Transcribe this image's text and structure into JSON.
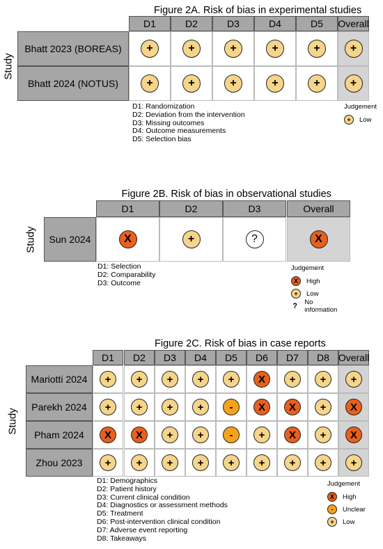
{
  "panels": [
    {
      "id": "2a",
      "title": "Figure 2A. Risk of bias in experimental studies",
      "axis_label": "Study",
      "columns": [
        "D1",
        "D2",
        "D3",
        "D4",
        "D5",
        "Overall"
      ],
      "rows": [
        {
          "study": "Bhatt 2023 (BOREAS)",
          "judgements": [
            "low",
            "low",
            "low",
            "low",
            "low",
            "low"
          ]
        },
        {
          "study": "Bhatt 2024 (NOTUS)",
          "judgements": [
            "low",
            "low",
            "low",
            "low",
            "low",
            "low"
          ]
        }
      ],
      "definitions": [
        "D1: Randomization",
        "D2: Deviation from the intervention",
        "D3: Missing outcomes",
        "D4: Outcome measurements",
        "D5: Selection bias"
      ],
      "legend_title": "Judgement",
      "legend": [
        {
          "level": "low",
          "label": "Low"
        }
      ]
    },
    {
      "id": "2b",
      "title": "Figure 2B. Risk of bias in observational studies",
      "axis_label": "Study",
      "columns": [
        "D1",
        "D2",
        "D3",
        "Overall"
      ],
      "rows": [
        {
          "study": "Sun 2024",
          "judgements": [
            "high",
            "low",
            "ni",
            "high"
          ]
        }
      ],
      "definitions": [
        "D1: Selection",
        "D2: Comparability",
        "D3: Outcome"
      ],
      "legend_title": "Judgement",
      "legend": [
        {
          "level": "high",
          "label": "High"
        },
        {
          "level": "low",
          "label": "Low"
        },
        {
          "level": "ni",
          "label": "No information"
        }
      ]
    },
    {
      "id": "2c",
      "title": "Figure 2C. Risk of bias in case reports",
      "axis_label": "Study",
      "columns": [
        "D1",
        "D2",
        "D3",
        "D4",
        "D5",
        "D6",
        "D7",
        "D8",
        "Overall"
      ],
      "rows": [
        {
          "study": "Mariotti 2024",
          "judgements": [
            "low",
            "low",
            "low",
            "low",
            "low",
            "high",
            "low",
            "low",
            "low"
          ]
        },
        {
          "study": "Parekh 2024",
          "judgements": [
            "low",
            "low",
            "low",
            "low",
            "unclear",
            "high",
            "high",
            "low",
            "high"
          ]
        },
        {
          "study": "Pham 2024",
          "judgements": [
            "high",
            "high",
            "low",
            "low",
            "unclear",
            "low",
            "high",
            "low",
            "high"
          ]
        },
        {
          "study": "Zhou 2023",
          "judgements": [
            "low",
            "low",
            "low",
            "low",
            "low",
            "low",
            "low",
            "low",
            "low"
          ]
        }
      ],
      "definitions": [
        "D1: Demographics",
        "D2: Patient history",
        "D3: Current clinical condition",
        "D4: Diagnostics or assessment methods",
        "D5: Treatment",
        "D6: Post-intervention clinical condition",
        "D7: Adverse event reporting",
        "D8: Takeaways"
      ],
      "legend_title": "Judgement",
      "legend": [
        {
          "level": "high",
          "label": "High"
        },
        {
          "level": "unclear",
          "label": "Unclear"
        },
        {
          "level": "low",
          "label": "Low"
        }
      ]
    }
  ],
  "symbols": {
    "low": "+",
    "high": "X",
    "unclear": "-",
    "ni": "?"
  },
  "colors": {
    "low": "#f6d58a",
    "high": "#e8601c",
    "unclear": "#f5a31a",
    "ni": "#ffffff",
    "header": "#a6a6a6",
    "overall_bg": "#d4d4d4"
  }
}
